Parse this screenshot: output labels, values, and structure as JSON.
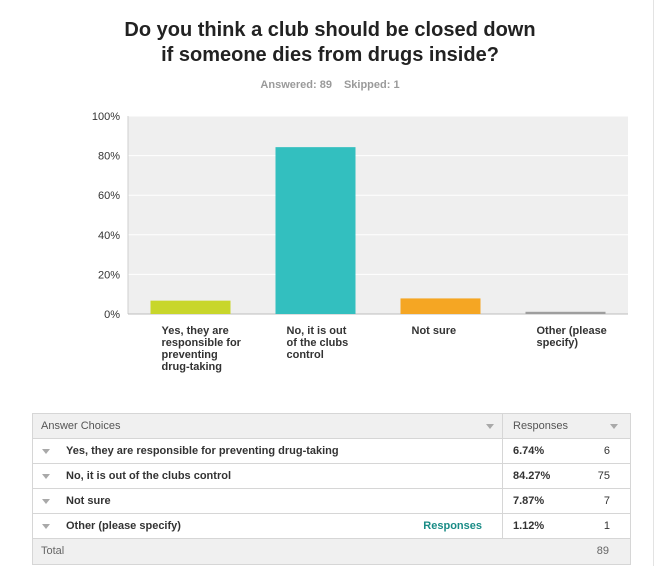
{
  "title": [
    "Do you think a club should be closed down",
    "if someone dies from drugs inside?"
  ],
  "answered_label": "Answered: 89",
  "skipped_label": "Skipped: 1",
  "chart_data": {
    "type": "bar",
    "title": "Do you think a club should be closed down if someone dies from drugs inside?",
    "categories": [
      [
        "Yes, they are",
        "responsible for",
        "preventing",
        "drug-taking"
      ],
      [
        "No, it is out",
        "of the clubs",
        "control"
      ],
      [
        "Not sure"
      ],
      [
        "Other (please",
        "specify)"
      ]
    ],
    "values": [
      6.74,
      84.27,
      7.87,
      1.12
    ],
    "colors": [
      "#c8d62b",
      "#33bfbf",
      "#f5a623",
      "#9e9e9e"
    ],
    "yticks": [
      "0%",
      "20%",
      "40%",
      "60%",
      "80%",
      "100%"
    ],
    "ylim": [
      0,
      100
    ],
    "grid": true,
    "plot_background": "#efefef"
  },
  "table": {
    "header": {
      "choices": "Answer Choices",
      "responses": "Responses"
    },
    "rows": [
      {
        "label": "Yes, they are responsible for preventing drug-taking",
        "pct": "6.74%",
        "count": "6"
      },
      {
        "label": "No, it is out of the clubs control",
        "pct": "84.27%",
        "count": "75"
      },
      {
        "label": "Not sure",
        "pct": "7.87%",
        "count": "7"
      },
      {
        "label": "Other (please specify)",
        "pct": "1.12%",
        "count": "1",
        "link": "Responses"
      }
    ],
    "total": {
      "label": "Total",
      "count": "89"
    }
  }
}
